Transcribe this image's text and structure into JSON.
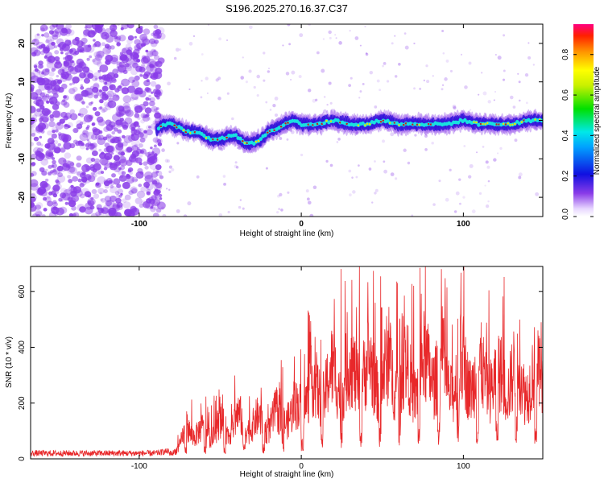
{
  "title": "S196.2025.270.16.37.C37",
  "colors": {
    "snr_line": "#e8282a",
    "axis": "#000000",
    "track_core": "#c81e1e",
    "track_mid": "#18e0e0",
    "track_edge": "#2a14d8",
    "noise": "#8a3ce8"
  },
  "chart_data": [
    {
      "type": "heatmap",
      "xlabel": "Height of straight line (km)",
      "ylabel": "Frequency (Hz)",
      "xlim": [
        -167,
        149
      ],
      "ylim": [
        -25,
        25
      ],
      "xticks": [
        -100,
        0,
        100
      ],
      "yticks": [
        -20,
        -10,
        0,
        10,
        20
      ],
      "xtick_labels": [
        "-100",
        "0",
        "100"
      ],
      "ytick_labels": [
        "-20",
        "-10",
        "0",
        "10",
        "20"
      ],
      "colorbar": {
        "label": "Normalized spectral amplitude",
        "range": [
          0.0,
          0.95
        ],
        "ticks": [
          "0.0",
          "0.2",
          "0.4",
          "0.6",
          "0.8"
        ],
        "colormap": "rainbow"
      },
      "noise_region_x": [
        -167,
        -90
      ],
      "signal_track": {
        "x": [
          -90,
          -85,
          -80,
          -75,
          -70,
          -65,
          -60,
          -55,
          -50,
          -45,
          -40,
          -35,
          -30,
          -25,
          -20,
          -15,
          -10,
          -5,
          0,
          10,
          20,
          30,
          40,
          50,
          60,
          70,
          80,
          90,
          100,
          110,
          120,
          130,
          140,
          149
        ],
        "freq": [
          -3,
          -1,
          -1,
          -2,
          -3,
          -3,
          -4,
          -5,
          -5,
          -4,
          -4,
          -6,
          -6,
          -5,
          -3,
          -2,
          -1,
          0,
          -1,
          -1,
          0,
          -1,
          -1,
          0,
          -1,
          -1,
          -1,
          -1,
          0,
          -1,
          -1,
          -1,
          0,
          0
        ]
      }
    },
    {
      "type": "line",
      "xlabel": "Height of straight line (km)",
      "ylabel": "SNR (10 * v/v)",
      "xlim": [
        -167,
        149
      ],
      "ylim": [
        0,
        690
      ],
      "xticks": [
        -100,
        0,
        100
      ],
      "yticks": [
        0,
        200,
        400,
        600
      ],
      "xtick_labels": [
        "-100",
        "0",
        "100"
      ],
      "ytick_labels": [
        "0",
        "200",
        "400",
        "600"
      ],
      "series": [
        {
          "name": "SNR",
          "x": [
            -167,
            -150,
            -130,
            -110,
            -90,
            -80,
            -75,
            -70,
            -65,
            -60,
            -55,
            -50,
            -45,
            -40,
            -35,
            -30,
            -25,
            -20,
            -15,
            -10,
            -5,
            0,
            5,
            10,
            15,
            20,
            25,
            30,
            35,
            40,
            45,
            50,
            55,
            60,
            65,
            70,
            75,
            80,
            85,
            90,
            95,
            100,
            105,
            110,
            115,
            120,
            125,
            130,
            135,
            140,
            145,
            149
          ],
          "values": [
            20,
            20,
            20,
            20,
            20,
            30,
            60,
            150,
            120,
            130,
            120,
            160,
            140,
            190,
            170,
            160,
            180,
            160,
            200,
            210,
            200,
            280,
            320,
            330,
            350,
            380,
            400,
            390,
            420,
            400,
            410,
            380,
            420,
            390,
            400,
            360,
            410,
            440,
            420,
            360,
            380,
            420,
            400,
            380,
            400,
            360,
            380,
            400,
            390,
            360,
            380,
            400
          ]
        }
      ]
    }
  ]
}
